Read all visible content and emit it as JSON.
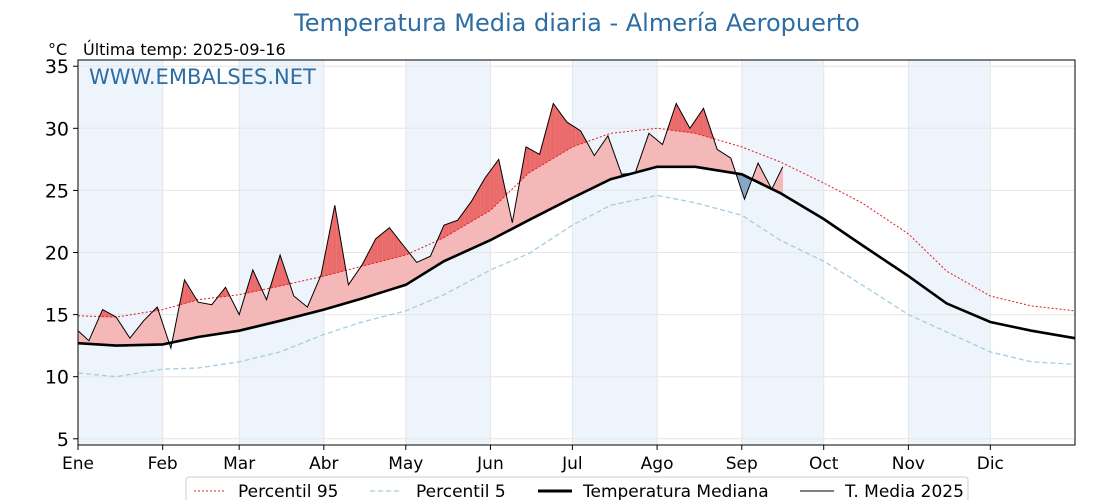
{
  "chart_data": {
    "type": "line",
    "title": "Temperatura Media diaria - Almería Aeropuerto",
    "ylabel": "°C",
    "subtitle": "Última temp: 2025-09-16",
    "watermark": "WWW.EMBALSES.NET",
    "ylim": [
      4.5,
      35.5
    ],
    "yticks": [
      5,
      10,
      15,
      20,
      25,
      30,
      35
    ],
    "xlim": [
      1,
      366
    ],
    "month_labels": [
      "Ene",
      "Feb",
      "Mar",
      "Abr",
      "May",
      "Jun",
      "Jul",
      "Ago",
      "Sep",
      "Oct",
      "Nov",
      "Dic"
    ],
    "month_start_days": [
      1,
      32,
      60,
      91,
      121,
      152,
      182,
      213,
      244,
      274,
      305,
      335
    ],
    "grid": true,
    "shaded_months": [
      "Ene",
      "Mar",
      "May",
      "Jul",
      "Sep",
      "Nov"
    ],
    "legend_position": "bottom",
    "colors": {
      "p95": "#e8191c",
      "p5": "#a6cde0",
      "median": "#000000",
      "current": "#000000",
      "above_fill": "#f4b8b8",
      "above_strong": "#ea6a6a",
      "below_fill": "#86a8c4",
      "title": "#2e6da4",
      "band": "#eef4fb"
    },
    "series": [
      {
        "name": "Percentil 95",
        "style": "dotted",
        "x": [
          1,
          15,
          32,
          45,
          60,
          75,
          91,
          105,
          121,
          135,
          152,
          166,
          182,
          196,
          213,
          227,
          244,
          258,
          274,
          288,
          305,
          319,
          335,
          350,
          366
        ],
        "values": [
          14.9,
          14.8,
          15.4,
          16.2,
          16.6,
          17.3,
          18.1,
          18.9,
          19.8,
          21.2,
          23.4,
          26.4,
          28.5,
          29.6,
          30.0,
          29.6,
          28.5,
          27.3,
          25.6,
          24.0,
          21.5,
          18.5,
          16.5,
          15.7,
          15.3
        ]
      },
      {
        "name": "Percentil 5",
        "style": "dashed",
        "x": [
          1,
          15,
          32,
          45,
          60,
          75,
          91,
          105,
          121,
          135,
          152,
          166,
          182,
          196,
          213,
          227,
          244,
          258,
          274,
          288,
          305,
          319,
          335,
          350,
          366
        ],
        "values": [
          10.3,
          10.0,
          10.6,
          10.7,
          11.2,
          12.0,
          13.4,
          14.4,
          15.3,
          16.6,
          18.6,
          19.9,
          22.2,
          23.8,
          24.6,
          24.0,
          23.0,
          21.0,
          19.3,
          17.4,
          15.0,
          13.6,
          12.0,
          11.2,
          11.0
        ]
      },
      {
        "name": "Temperatura Mediana",
        "style": "thick",
        "x": [
          1,
          15,
          32,
          45,
          60,
          75,
          91,
          105,
          121,
          135,
          152,
          166,
          182,
          196,
          213,
          227,
          244,
          258,
          274,
          288,
          305,
          319,
          335,
          350,
          366
        ],
        "values": [
          12.7,
          12.5,
          12.6,
          13.2,
          13.7,
          14.5,
          15.4,
          16.3,
          17.4,
          19.3,
          21.0,
          22.6,
          24.4,
          25.9,
          26.9,
          26.9,
          26.3,
          24.8,
          22.7,
          20.6,
          18.1,
          15.9,
          14.4,
          13.7,
          13.1
        ]
      },
      {
        "name": "T. Media 2025",
        "style": "thin",
        "x": [
          1,
          5,
          10,
          15,
          20,
          25,
          30,
          35,
          40,
          45,
          50,
          55,
          60,
          65,
          70,
          75,
          80,
          85,
          90,
          95,
          100,
          105,
          110,
          115,
          120,
          125,
          130,
          135,
          140,
          145,
          150,
          155,
          160,
          165,
          170,
          175,
          180,
          185,
          190,
          195,
          200,
          205,
          210,
          215,
          220,
          225,
          230,
          235,
          240,
          245,
          250,
          255,
          259
        ],
        "values": [
          13.7,
          12.9,
          15.4,
          14.8,
          13.1,
          14.5,
          15.6,
          12.3,
          17.8,
          16.0,
          15.8,
          17.2,
          15.0,
          18.6,
          16.2,
          19.8,
          16.5,
          15.6,
          18.2,
          23.8,
          17.4,
          19.0,
          21.1,
          22.0,
          20.6,
          19.2,
          19.7,
          22.2,
          22.6,
          24.1,
          26.0,
          27.5,
          22.4,
          28.5,
          27.9,
          32.0,
          30.5,
          29.8,
          27.8,
          29.4,
          26.3,
          26.4,
          29.6,
          28.7,
          32.0,
          30.0,
          31.6,
          28.3,
          27.6,
          24.3,
          27.2,
          25.1,
          26.9
        ]
      }
    ]
  }
}
